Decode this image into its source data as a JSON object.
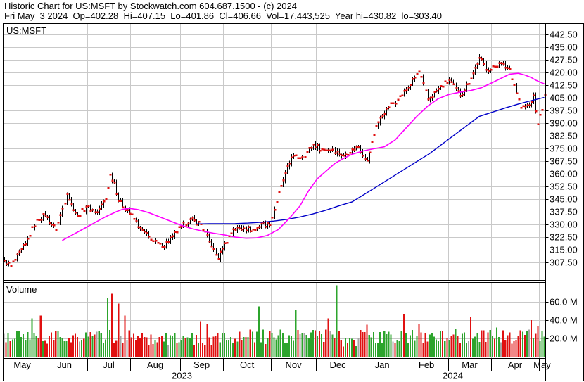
{
  "header": {
    "line1": "Historic Chart for US:MSFT by Stockwatch.com 604.687.1500 - (c) 2024",
    "line2": "Fri May  3 2024  Op=402.28  Hi=407.15  Lo=401.86  Cl=406.66  Vol=17,443,525  Year hi=430.82  lo=303.40"
  },
  "chart_data": {
    "type": "ohlc-bar",
    "title": "Historic Chart for US:MSFT",
    "symbol_label": "US:MSFT",
    "volume_label": "Volume",
    "grid": true,
    "legend_position": "none",
    "price_axis": {
      "tick_labels": [
        "442.50",
        "435.00",
        "427.50",
        "420.00",
        "412.50",
        "405.00",
        "397.50",
        "390.00",
        "382.50",
        "375.00",
        "367.50",
        "360.00",
        "352.50",
        "345.00",
        "337.50",
        "330.00",
        "322.50",
        "315.00",
        "307.50"
      ],
      "tick_values": [
        442.5,
        435.0,
        427.5,
        420.0,
        412.5,
        405.0,
        397.5,
        390.0,
        382.5,
        375.0,
        367.5,
        360.0,
        352.5,
        345.0,
        337.5,
        330.0,
        322.5,
        315.0,
        307.5
      ],
      "ylim": [
        300,
        446
      ]
    },
    "volume_axis": {
      "tick_labels": [
        "60.0 M",
        "40.0 M",
        "20.0 M"
      ],
      "tick_values": [
        60,
        40,
        20
      ],
      "ylim": [
        0,
        80
      ]
    },
    "x_axis": {
      "months": [
        "May",
        "Jun",
        "Jul",
        "Aug",
        "Sep",
        "Oct",
        "Nov",
        "Dec",
        "Jan",
        "Feb",
        "Mar",
        "Apr",
        "May"
      ],
      "month_spans": [
        [
          0,
          17
        ],
        [
          18,
          38
        ],
        [
          39,
          58
        ],
        [
          59,
          81
        ],
        [
          82,
          101
        ],
        [
          102,
          123
        ],
        [
          124,
          144
        ],
        [
          145,
          164
        ],
        [
          165,
          185
        ],
        [
          186,
          205
        ],
        [
          206,
          225
        ],
        [
          226,
          247
        ],
        [
          248,
          250
        ]
      ],
      "month_boundaries": [
        18,
        39,
        59,
        82,
        102,
        124,
        145,
        165,
        186,
        206,
        226,
        248
      ],
      "years": [
        "2023",
        "2024"
      ],
      "year_boundary_day": 165
    },
    "series": {
      "bar_count": 251,
      "close_weekly_anchors": [
        [
          0,
          308.7
        ],
        [
          3,
          305.3
        ],
        [
          5,
          309.0
        ],
        [
          10,
          318.3
        ],
        [
          15,
          332.9
        ],
        [
          19,
          335.4
        ],
        [
          24,
          326.8
        ],
        [
          29,
          348.1
        ],
        [
          31,
          342.3
        ],
        [
          34,
          335.0
        ],
        [
          38,
          340.5
        ],
        [
          43,
          337.2
        ],
        [
          47,
          345.2
        ],
        [
          49,
          359.5
        ],
        [
          51,
          355.0
        ],
        [
          53,
          343.8
        ],
        [
          57,
          338.4
        ],
        [
          63,
          327.8
        ],
        [
          68,
          321.0
        ],
        [
          73,
          316.5
        ],
        [
          78,
          323.0
        ],
        [
          82,
          328.7
        ],
        [
          86,
          333.0
        ],
        [
          91,
          330.2
        ],
        [
          96,
          317.0
        ],
        [
          99,
          309.5
        ],
        [
          101,
          315.8
        ],
        [
          106,
          327.3
        ],
        [
          111,
          327.7
        ],
        [
          116,
          326.7
        ],
        [
          119,
          330.5
        ],
        [
          123,
          329.8
        ],
        [
          128,
          352.8
        ],
        [
          133,
          369.7
        ],
        [
          138,
          369.9
        ],
        [
          143,
          377.4
        ],
        [
          147,
          374.5
        ],
        [
          152,
          374.2
        ],
        [
          157,
          370.7
        ],
        [
          161,
          374.6
        ],
        [
          164,
          376.0
        ],
        [
          168,
          367.8
        ],
        [
          172,
          388.5
        ],
        [
          177,
          398.7
        ],
        [
          182,
          403.9
        ],
        [
          187,
          411.2
        ],
        [
          192,
          420.6
        ],
        [
          196,
          404.1
        ],
        [
          201,
          410.3
        ],
        [
          206,
          415.5
        ],
        [
          211,
          406.2
        ],
        [
          216,
          416.4
        ],
        [
          220,
          428.7
        ],
        [
          224,
          420.7
        ],
        [
          229,
          425.5
        ],
        [
          234,
          421.9
        ],
        [
          239,
          399.1
        ],
        [
          243,
          400.5
        ],
        [
          245,
          406.3
        ],
        [
          247,
          389.3
        ],
        [
          248,
          394.9
        ],
        [
          249,
          397.8
        ],
        [
          250,
          406.66
        ]
      ],
      "bar_overrides": {
        "3": {
          "l": 303.4
        },
        "49": {
          "h": 366.8
        },
        "99": {
          "l": 309.4
        },
        "220": {
          "h": 430.82
        },
        "247": {
          "l": 388.0
        },
        "250": {
          "h": 407.15,
          "l": 401.86,
          "c": 406.66
        }
      },
      "ma_fast": {
        "name": "moving-average-fast",
        "color": "#ff00ff",
        "points": [
          [
            27,
            320.5
          ],
          [
            32,
            324
          ],
          [
            37,
            327.5
          ],
          [
            42,
            331
          ],
          [
            47,
            334.5
          ],
          [
            52,
            337.5
          ],
          [
            55,
            339
          ],
          [
            58,
            339.5
          ],
          [
            62,
            338.8
          ],
          [
            67,
            337
          ],
          [
            72,
            334.5
          ],
          [
            77,
            332
          ],
          [
            82,
            329.5
          ],
          [
            87,
            327.5
          ],
          [
            92,
            326
          ],
          [
            97,
            324.8
          ],
          [
            102,
            323.8
          ],
          [
            107,
            322.5
          ],
          [
            112,
            321.8
          ],
          [
            117,
            322
          ],
          [
            122,
            323.5
          ],
          [
            127,
            327
          ],
          [
            132,
            333.5
          ],
          [
            137,
            341
          ],
          [
            141,
            350
          ],
          [
            145,
            357
          ],
          [
            149,
            361.5
          ],
          [
            153,
            366
          ],
          [
            157,
            369
          ],
          [
            161,
            371.5
          ],
          [
            166,
            373.5
          ],
          [
            171,
            374.8
          ],
          [
            176,
            376
          ],
          [
            181,
            380
          ],
          [
            186,
            387
          ],
          [
            191,
            394
          ],
          [
            196,
            400
          ],
          [
            201,
            404.5
          ],
          [
            206,
            407
          ],
          [
            211,
            408.3
          ],
          [
            216,
            409.3
          ],
          [
            221,
            411
          ],
          [
            226,
            414
          ],
          [
            230,
            416.5
          ],
          [
            234,
            419
          ],
          [
            238,
            419.5
          ],
          [
            241,
            418.5
          ],
          [
            244,
            417
          ],
          [
            246,
            415.5
          ],
          [
            248,
            414.3
          ],
          [
            250,
            413.3
          ]
        ]
      },
      "ma_slow": {
        "name": "moving-average-slow",
        "color": "#0000c8",
        "points": [
          [
            89,
            330.3
          ],
          [
            95,
            330.4
          ],
          [
            101,
            330.4
          ],
          [
            107,
            330.5
          ],
          [
            113,
            330.8
          ],
          [
            119,
            331.3
          ],
          [
            125,
            332
          ],
          [
            131,
            333
          ],
          [
            137,
            334.4
          ],
          [
            143,
            336.2
          ],
          [
            149,
            338.4
          ],
          [
            155,
            341
          ],
          [
            161,
            343.3
          ],
          [
            167,
            348
          ],
          [
            173,
            352.8
          ],
          [
            179,
            357.6
          ],
          [
            185,
            362.4
          ],
          [
            191,
            367.2
          ],
          [
            197,
            372
          ],
          [
            203,
            377.8
          ],
          [
            209,
            383.5
          ],
          [
            215,
            389.3
          ],
          [
            220,
            394
          ],
          [
            226,
            396.5
          ],
          [
            232,
            399
          ],
          [
            238,
            401.3
          ],
          [
            244,
            403.3
          ],
          [
            250,
            405.2
          ]
        ]
      },
      "volume_spikes": [
        [
          13,
          42,
          1
        ],
        [
          17,
          45,
          -1
        ],
        [
          48,
          64,
          1
        ],
        [
          50,
          69,
          -1
        ],
        [
          53,
          58,
          -1
        ],
        [
          56,
          45,
          -1
        ],
        [
          91,
          38,
          -1
        ],
        [
          94,
          36,
          -1
        ],
        [
          118,
          55,
          1
        ],
        [
          135,
          51,
          1
        ],
        [
          150,
          42,
          -1
        ],
        [
          154,
          78,
          1
        ],
        [
          168,
          35,
          -1
        ],
        [
          185,
          47,
          -1
        ],
        [
          192,
          36,
          -1
        ],
        [
          209,
          30,
          1
        ],
        [
          216,
          44,
          -1
        ],
        [
          228,
          32,
          1
        ],
        [
          244,
          40,
          -1
        ],
        [
          247,
          34,
          -1
        ]
      ],
      "volume_baseline_range": [
        14,
        30
      ]
    },
    "colors": {
      "background": "#ffffff",
      "grid": "#c9c9c9",
      "border": "#000000",
      "price_bar": "#000000",
      "close_tick": "#e01010",
      "volume_up": "#2ca42c",
      "volume_down": "#e01010",
      "volume_flat": "#a6a6a6",
      "ma_fast": "#ff00ff",
      "ma_slow": "#0000c8"
    }
  }
}
